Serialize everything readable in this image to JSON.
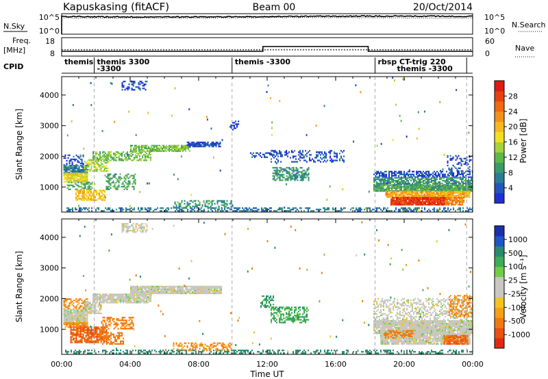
{
  "header": {
    "station": "Kapuskasing (fitACF)",
    "beam": "Beam 00",
    "date": "20/Oct/2014"
  },
  "strip_labels": {
    "nsky": "N.Sky",
    "nsky_ticks": [
      "10^5",
      "10^0"
    ],
    "nsearch": "N.Search",
    "nsearch_ticks": [
      "10^5",
      "10^0"
    ],
    "freq_line1": "Freq.",
    "freq_line2": "[MHz]",
    "freq_ticks": [
      "18",
      "8"
    ],
    "nave": "Nave",
    "nave_ticks": [
      "60",
      "0"
    ],
    "cpid": "CPID"
  },
  "cpid_segments": [
    {
      "start": 0.0,
      "end": 1.9,
      "lines": [
        "themis"
      ]
    },
    {
      "start": 1.9,
      "end": 9.95,
      "lines": [
        "themis 3300",
        "-3300"
      ]
    },
    {
      "start": 9.95,
      "end": 18.3,
      "lines": [
        "themis -3300"
      ]
    },
    {
      "start": 18.3,
      "end": 24.0,
      "lines": [
        "rbsp CT-trig 220",
        "themis -3300"
      ]
    }
  ],
  "axes": {
    "ylabel": "Slant Range [km]",
    "yticks": [
      "1000",
      "2000",
      "3000",
      "4000"
    ],
    "xticks": [
      "00:00",
      "04:00",
      "08:00",
      "12:00",
      "16:00",
      "20:00",
      "00:00"
    ],
    "xlabel": "Time UT"
  },
  "power_scale": {
    "title": "Power [dB]",
    "ticks": [
      "4",
      "8",
      "12",
      "16",
      "20",
      "24",
      "28"
    ],
    "colors": [
      "#1f2fd8",
      "#2255c0",
      "#2a7d96",
      "#3c9a6a",
      "#5fb84a",
      "#a6d23c",
      "#f2e020",
      "#f7b820",
      "#f59018",
      "#ef6a10",
      "#e84010",
      "#e01a10"
    ]
  },
  "velocity_scale": {
    "title": "Velocity [m s⁻¹]",
    "ticks": [
      "1000",
      "500",
      "100",
      "25",
      "-25",
      "-100",
      "-500",
      "-1000"
    ],
    "colors": [
      "#1a2fb0",
      "#2055c8",
      "#2a8a70",
      "#3cae55",
      "#72cc45",
      "#c8c8c0",
      "#c8c8c0",
      "#f5c220",
      "#f5a015",
      "#f07a10",
      "#ea5010",
      "#e02a10"
    ]
  },
  "chart_data": {
    "type": "heatmap",
    "x_range_hours": [
      0,
      24
    ],
    "y_range_km": [
      180,
      4600
    ],
    "dashed_hours": [
      1.9,
      9.95,
      18.3,
      23.65
    ],
    "freq_mhz": [
      {
        "start": 0.0,
        "end": 11.75,
        "value": 10.6
      },
      {
        "start": 11.75,
        "end": 17.9,
        "value": 13.2
      },
      {
        "start": 17.9,
        "end": 24.0,
        "value": 10.6
      }
    ],
    "nave_level": 0.34,
    "power_regions": [
      {
        "t0": 0.1,
        "t1": 1.3,
        "r0": 1700,
        "r1": 2050,
        "v": 5,
        "d": 0.35
      },
      {
        "t0": 0.1,
        "t1": 1.5,
        "r0": 1450,
        "r1": 1700,
        "v": 8,
        "d": 0.8
      },
      {
        "t0": 0.1,
        "t1": 1.5,
        "r0": 1150,
        "r1": 1450,
        "v": 18,
        "d": 0.9
      },
      {
        "t0": 0.3,
        "t1": 1.8,
        "r0": 900,
        "r1": 1150,
        "v": 12,
        "d": 0.5
      },
      {
        "t0": 0.8,
        "t1": 2.5,
        "r0": 550,
        "r1": 900,
        "v": 20,
        "d": 0.7
      },
      {
        "t0": 1.3,
        "t1": 2.7,
        "r0": 1500,
        "r1": 1900,
        "v": 16,
        "d": 0.6
      },
      {
        "t0": 2.5,
        "t1": 4.3,
        "r0": 900,
        "r1": 1400,
        "v": 12,
        "d": 0.45
      },
      {
        "t0": 1.8,
        "t1": 5.2,
        "r0": 1850,
        "r1": 2150,
        "v": 14,
        "d": 0.6
      },
      {
        "t0": 4.0,
        "t1": 7.5,
        "r0": 2150,
        "r1": 2350,
        "v": 14,
        "d": 0.75
      },
      {
        "t0": 7.3,
        "t1": 9.3,
        "r0": 2300,
        "r1": 2450,
        "v": 5,
        "d": 0.8
      },
      {
        "t0": 3.5,
        "t1": 5.0,
        "r0": 4150,
        "r1": 4450,
        "v": 5,
        "d": 0.5
      },
      {
        "t0": 11.0,
        "t1": 12.3,
        "r0": 1950,
        "r1": 2100,
        "v": 5,
        "d": 0.3
      },
      {
        "t0": 12.2,
        "t1": 16.5,
        "r0": 1800,
        "r1": 2200,
        "v": 5,
        "d": 0.35
      },
      {
        "t0": 12.3,
        "t1": 14.4,
        "r0": 1200,
        "r1": 1650,
        "v": 10,
        "d": 0.55
      },
      {
        "t0": 9.8,
        "t1": 10.3,
        "r0": 2850,
        "r1": 3150,
        "v": 5,
        "d": 0.5
      },
      {
        "t0": 18.2,
        "t1": 24.0,
        "r0": 1300,
        "r1": 1500,
        "v": 5,
        "d": 0.55
      },
      {
        "t0": 18.2,
        "t1": 24.0,
        "r0": 1050,
        "r1": 1300,
        "v": 10,
        "d": 0.75
      },
      {
        "t0": 18.2,
        "t1": 24.0,
        "r0": 850,
        "r1": 1050,
        "v": 12,
        "d": 0.92
      },
      {
        "t0": 18.9,
        "t1": 23.8,
        "r0": 650,
        "r1": 850,
        "v": 22,
        "d": 0.9
      },
      {
        "t0": 19.2,
        "t1": 22.4,
        "r0": 400,
        "r1": 650,
        "v": 29,
        "d": 0.97
      },
      {
        "t0": 22.4,
        "t1": 23.5,
        "r0": 400,
        "r1": 650,
        "v": 24,
        "d": 0.85
      },
      {
        "t0": 22.5,
        "t1": 24.0,
        "r0": 1500,
        "r1": 2000,
        "v": 5,
        "d": 0.35
      },
      {
        "t0": 0.2,
        "t1": 24.0,
        "r0": 200,
        "r1": 300,
        "v": 8,
        "d": 0.45
      },
      {
        "t0": 6.5,
        "t1": 10.0,
        "r0": 300,
        "r1": 550,
        "v": 10,
        "d": 0.5
      }
    ],
    "velocity_regions": [
      {
        "t0": 0.1,
        "t1": 1.5,
        "r0": 1650,
        "r1": 2000,
        "v": -100,
        "d": 0.45
      },
      {
        "t0": 0.1,
        "t1": 1.5,
        "r0": 1200,
        "r1": 1650,
        "v": 0,
        "d": 0.95
      },
      {
        "t0": 0.1,
        "t1": 1.5,
        "r0": 1050,
        "r1": 1200,
        "v": -100,
        "d": 0.9
      },
      {
        "t0": 0.5,
        "t1": 2.6,
        "r0": 550,
        "r1": 1050,
        "v": -300,
        "d": 0.75
      },
      {
        "t0": 2.2,
        "t1": 3.6,
        "r0": 500,
        "r1": 900,
        "v": -200,
        "d": 0.55
      },
      {
        "t0": 1.3,
        "t1": 2.3,
        "r0": 1500,
        "r1": 1900,
        "v": 0,
        "d": 0.7
      },
      {
        "t0": 2.3,
        "t1": 4.2,
        "r0": 1000,
        "r1": 1400,
        "v": -120,
        "d": 0.5
      },
      {
        "t0": 1.8,
        "t1": 5.2,
        "r0": 1850,
        "r1": 2150,
        "v": 0,
        "d": 0.85
      },
      {
        "t0": 4.0,
        "t1": 9.3,
        "r0": 2150,
        "r1": 2400,
        "v": 0,
        "d": 0.95
      },
      {
        "t0": 3.5,
        "t1": 5.0,
        "r0": 4150,
        "r1": 4450,
        "v": 0,
        "d": 0.55
      },
      {
        "t0": 12.2,
        "t1": 14.4,
        "r0": 1200,
        "r1": 1700,
        "v": 80,
        "d": 0.5
      },
      {
        "t0": 11.6,
        "t1": 12.4,
        "r0": 1700,
        "r1": 2100,
        "v": 100,
        "d": 0.45
      },
      {
        "t0": 18.2,
        "t1": 24.0,
        "r0": 1300,
        "r1": 2000,
        "v": 0,
        "d": 0.4
      },
      {
        "t0": 18.2,
        "t1": 24.0,
        "r0": 850,
        "r1": 1300,
        "v": 0,
        "d": 0.95
      },
      {
        "t0": 18.6,
        "t1": 23.8,
        "r0": 500,
        "r1": 850,
        "v": 0,
        "d": 0.92
      },
      {
        "t0": 18.8,
        "t1": 20.5,
        "r0": 700,
        "r1": 950,
        "v": -150,
        "d": 0.55
      },
      {
        "t0": 22.3,
        "t1": 23.7,
        "r0": 500,
        "r1": 800,
        "v": -300,
        "d": 0.85
      },
      {
        "t0": 22.6,
        "t1": 24.0,
        "r0": 1400,
        "r1": 2100,
        "v": -100,
        "d": 0.45
      },
      {
        "t0": 0.2,
        "t1": 24.0,
        "r0": 200,
        "r1": 300,
        "v": 200,
        "d": 0.4
      },
      {
        "t0": 6.5,
        "t1": 10.0,
        "r0": 300,
        "r1": 550,
        "v": -100,
        "d": 0.45
      }
    ]
  }
}
